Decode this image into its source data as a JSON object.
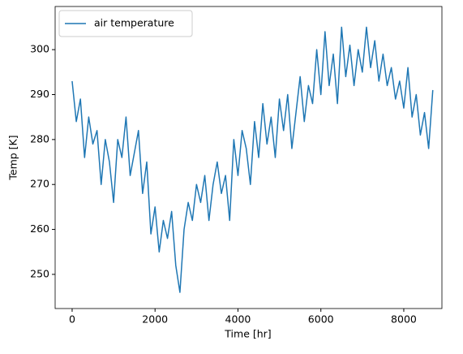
{
  "chart_data": {
    "type": "line",
    "x_label": "Time [hr]",
    "y_label": "Temp [K]",
    "x": [
      0,
      100,
      200,
      300,
      400,
      500,
      600,
      700,
      800,
      900,
      1000,
      1100,
      1200,
      1300,
      1400,
      1500,
      1600,
      1700,
      1800,
      1900,
      2000,
      2100,
      2200,
      2300,
      2400,
      2500,
      2600,
      2700,
      2800,
      2900,
      3000,
      3100,
      3200,
      3300,
      3400,
      3500,
      3600,
      3700,
      3800,
      3900,
      4000,
      4100,
      4200,
      4300,
      4400,
      4500,
      4600,
      4700,
      4800,
      4900,
      5000,
      5100,
      5200,
      5300,
      5400,
      5500,
      5600,
      5700,
      5800,
      5900,
      6000,
      6100,
      6200,
      6300,
      6400,
      6500,
      6600,
      6700,
      6800,
      6900,
      7000,
      7100,
      7200,
      7300,
      7400,
      7500,
      7600,
      7700,
      7800,
      7900,
      8000,
      8100,
      8200,
      8300,
      8400,
      8500,
      8600,
      8700
    ],
    "series": [
      {
        "name": "air temperature",
        "color": "#1f77b4",
        "values": [
          293,
          284,
          289,
          276,
          285,
          279,
          282,
          270,
          280,
          275,
          266,
          280,
          276,
          285,
          272,
          277,
          282,
          268,
          275,
          259,
          265,
          255,
          262,
          258,
          264,
          252,
          246,
          260,
          266,
          262,
          270,
          266,
          272,
          262,
          270,
          275,
          268,
          272,
          262,
          280,
          272,
          282,
          278,
          270,
          284,
          276,
          288,
          279,
          285,
          276,
          289,
          282,
          290,
          278,
          286,
          294,
          284,
          292,
          288,
          300,
          290,
          304,
          292,
          299,
          288,
          305,
          294,
          301,
          292,
          300,
          295,
          305,
          296,
          302,
          293,
          299,
          292,
          296,
          289,
          293,
          287,
          296,
          285,
          290,
          281,
          286,
          278,
          291
        ]
      }
    ],
    "xlim": [
      -410,
      8920
    ],
    "ylim": [
      242.4,
      309.6
    ],
    "xticks": [
      0,
      2000,
      4000,
      6000,
      8000
    ],
    "yticks": [
      250,
      260,
      270,
      280,
      290,
      300
    ],
    "legend": "upper left"
  }
}
